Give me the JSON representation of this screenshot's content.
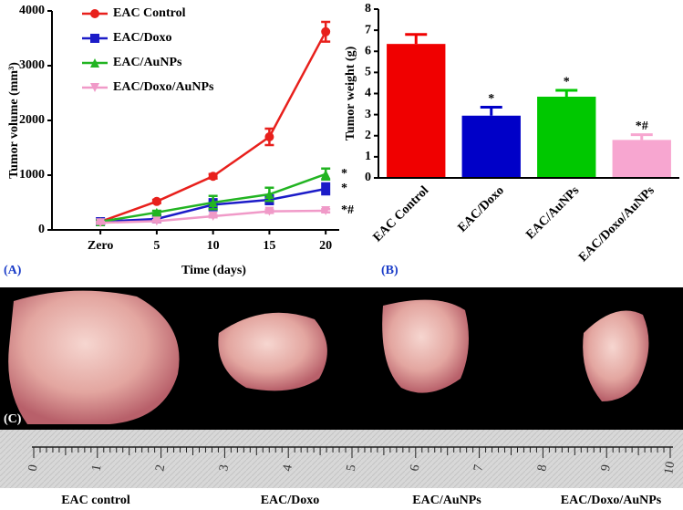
{
  "chart_data": [
    {
      "type": "line",
      "panel": "(A)",
      "ylabel": "Tumor volume (mm³)",
      "xlabel": "Time (days)",
      "x": [
        0,
        5,
        10,
        15,
        20
      ],
      "xlim": [
        -4.3,
        21.2
      ],
      "xticks": [
        {
          "value": 0,
          "label": "Zero"
        },
        5,
        10,
        15,
        20
      ],
      "ylim": [
        0,
        4000
      ],
      "yticks": [
        0,
        1000,
        2000,
        3000,
        4000
      ],
      "legend": "top-left",
      "series": [
        {
          "name": "EAC Control",
          "color": "#e8201c",
          "marker": "circle",
          "values": [
            150,
            520,
            980,
            1700,
            3620
          ],
          "errors": [
            30,
            30,
            40,
            150,
            180
          ]
        },
        {
          "name": "EAC/Doxo",
          "color": "#1c1cc8",
          "marker": "square",
          "values": [
            150,
            200,
            460,
            550,
            750
          ],
          "errors": [
            40,
            40,
            100,
            80,
            100
          ],
          "end_label": "*"
        },
        {
          "name": "EAC/AuNPs",
          "color": "#22b422",
          "marker": "triangle",
          "values": [
            150,
            320,
            500,
            650,
            1020
          ],
          "errors": [
            30,
            30,
            120,
            120,
            100
          ],
          "end_label": "*"
        },
        {
          "name": "EAC/Doxo/AuNPs",
          "color": "#f09ac8",
          "marker": "triangle-down",
          "values": [
            130,
            160,
            250,
            340,
            350
          ],
          "errors": [
            20,
            20,
            20,
            30,
            30
          ],
          "end_label": "*#"
        }
      ]
    },
    {
      "type": "bar",
      "panel": "(B)",
      "ylabel": "Tumor weight (g)",
      "categories": [
        "EAC Control",
        "EAC/Doxo",
        "EAC/AuNPs",
        "EAC/Doxo/AuNPs"
      ],
      "values": [
        6.35,
        2.95,
        3.85,
        1.8
      ],
      "errors": [
        0.45,
        0.4,
        0.3,
        0.25
      ],
      "colors": [
        "#f00000",
        "#0000c8",
        "#00c800",
        "#f7a6d0"
      ],
      "annotations": [
        {
          "index": 1,
          "text": "*"
        },
        {
          "index": 2,
          "text": "*"
        },
        {
          "index": 3,
          "text": "*#"
        }
      ],
      "ylim": [
        0,
        8
      ],
      "yticks": [
        0,
        1,
        2,
        3,
        4,
        5,
        6,
        7,
        8
      ]
    }
  ],
  "photo": {
    "panel": "(C)",
    "ruler_labels": [
      0,
      1,
      2,
      3,
      4,
      5,
      6,
      7,
      8,
      9,
      10
    ],
    "captions": [
      "EAC control",
      "EAC/Doxo",
      "EAC/AuNPs",
      "EAC/Doxo/AuNPs"
    ]
  }
}
